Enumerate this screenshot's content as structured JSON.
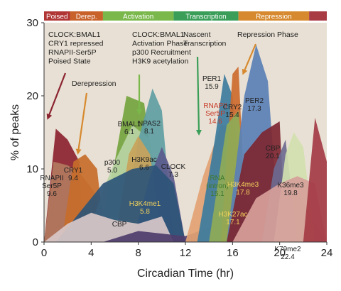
{
  "chart_data": {
    "type": "area",
    "title": "",
    "xlabel": "Circadian Time (hr)",
    "ylabel": "% of peaks",
    "xlim": [
      0,
      24
    ],
    "ylim": [
      0,
      30
    ],
    "xticks": [
      "0",
      "4",
      "8",
      "12",
      "16",
      "20",
      "24"
    ],
    "yticks": [
      "0",
      "10",
      "20",
      "30"
    ],
    "plot_background": "#e8e0d4",
    "grid": false,
    "phases": [
      {
        "name": "Poised",
        "start": 0,
        "end": 2.2,
        "color": "#b03535"
      },
      {
        "name": "Derep.",
        "start": 2.2,
        "end": 5,
        "color": "#c8612a"
      },
      {
        "name": "Activation",
        "start": 5,
        "end": 11,
        "color": "#7ab84b"
      },
      {
        "name": "Transcription",
        "start": 11,
        "end": 16.5,
        "color": "#3a9e58"
      },
      {
        "name": "Repression",
        "start": 16.5,
        "end": 22.5,
        "color": "#d6892e"
      },
      {
        "name": "",
        "start": 22.5,
        "end": 24,
        "color": "#a73a43"
      }
    ],
    "series": [
      {
        "name": "CLOCK:BMAL1",
        "color": "#8b2330",
        "label_color": "#222222",
        "x": [
          0,
          1,
          2,
          3,
          3.3,
          24
        ],
        "y": [
          0,
          15.5,
          14,
          11,
          0,
          0
        ]
      },
      {
        "name": "RNAPII Ser5P",
        "value": "9.6",
        "color": "#b2785e",
        "label_color": "#222222",
        "x": [
          0,
          0.8,
          2,
          3,
          4.2,
          6,
          24
        ],
        "y": [
          0,
          11,
          10.5,
          9.5,
          7,
          0,
          0
        ]
      },
      {
        "name": "CRY1",
        "value": "9.4",
        "color": "#c56d2a",
        "label_color": "#222222",
        "x": [
          1.5,
          2.5,
          3.5,
          4.5,
          5.2,
          24
        ],
        "y": [
          0,
          11,
          12,
          10,
          0,
          0
        ]
      },
      {
        "name": "BMAL1",
        "value": "6.1",
        "color": "#74a43e",
        "label_color": "#222222",
        "x": [
          4.5,
          6,
          7,
          8.5,
          10,
          24
        ],
        "y": [
          0,
          11,
          20,
          19,
          0,
          0
        ]
      },
      {
        "name": "p300",
        "value": "5.0",
        "color": "#b9d4a4",
        "label_color": "#222222",
        "x": [
          3.5,
          5,
          6,
          7.5,
          9,
          10,
          24
        ],
        "y": [
          0,
          7,
          11,
          16,
          14,
          0,
          0
        ]
      },
      {
        "name": "NPAS2",
        "value": "8.1",
        "color": "#5f9ea3",
        "label_color": "#222222",
        "x": [
          6.5,
          8,
          9.2,
          10,
          11,
          24
        ],
        "y": [
          0,
          14,
          21,
          18,
          0,
          0
        ]
      },
      {
        "name": "H3K9ac",
        "value": "6.6",
        "color": "#c9a25a",
        "label_color": "#222222",
        "x": [
          6,
          7.2,
          8,
          9,
          10,
          24
        ],
        "y": [
          0,
          12,
          14.5,
          12,
          0,
          0
        ]
      },
      {
        "name": "CLOCK",
        "value": "7.3",
        "color": "#5b5a8c",
        "label_color": "#222222",
        "x": [
          7.5,
          9,
          10,
          11,
          12,
          24
        ],
        "y": [
          0,
          9,
          13,
          9,
          0,
          0
        ]
      },
      {
        "name": "H3K4me1",
        "value": "5.8",
        "color": "#2e5578",
        "label_color": "#f2d25c",
        "x": [
          1,
          3,
          5,
          7.5,
          9.5,
          11,
          12,
          24
        ],
        "y": [
          0,
          4,
          8,
          10,
          10.5,
          8,
          0,
          0
        ]
      },
      {
        "name": "CBP",
        "color": "#d8c8c8",
        "label_color": "#222222",
        "x": [
          0,
          2,
          4,
          6,
          8,
          10,
          11,
          24
        ],
        "y": [
          0,
          2.5,
          4,
          3,
          2.5,
          3.5,
          0,
          0
        ]
      },
      {
        "name": "H3K27ac",
        "value": "17.1",
        "color": "#4f3d6d",
        "label_color": "#f2d25c",
        "x": [
          5,
          8,
          12,
          14,
          16,
          18,
          20,
          21,
          24
        ],
        "y": [
          0,
          1.5,
          0.8,
          2,
          4,
          6,
          7.5,
          8,
          0
        ]
      },
      {
        "name": "RNA (intron)",
        "value": "15.1",
        "color": "#e2a273",
        "label_color": "#3e7a2c",
        "x": [
          12,
          13.5,
          15,
          15.8,
          16.5,
          24
        ],
        "y": [
          0,
          9,
          16,
          16,
          0,
          0
        ]
      },
      {
        "name": "RNAPII Ser5P",
        "value": "14.6",
        "color": "#3d7c9d",
        "label_color": "#c73a28",
        "x": [
          13,
          14.5,
          15.3,
          16,
          17,
          24
        ],
        "y": [
          0,
          14,
          23,
          20,
          0,
          0
        ]
      },
      {
        "name": "PER1",
        "value": "15.9",
        "color": "#cc6a2e",
        "label_color": "#222222",
        "x": [
          15,
          16,
          16.5,
          17.2,
          24
        ],
        "y": [
          0,
          23,
          24,
          0,
          0
        ]
      },
      {
        "name": "CRY2",
        "value": "15.4",
        "color": "#8fab57",
        "label_color": "#222222",
        "x": [
          14,
          15.5,
          16.5,
          17.5,
          24
        ],
        "y": [
          0,
          16,
          18,
          0,
          0
        ]
      },
      {
        "name": "PER2",
        "value": "17.3",
        "color": "#5a80b6",
        "label_color": "#222222",
        "x": [
          15.5,
          17,
          18,
          19,
          20,
          24
        ],
        "y": [
          0,
          20,
          27,
          22,
          0,
          0
        ]
      },
      {
        "name": "H3K4me3",
        "value": "17.8",
        "color": "#7d2631",
        "label_color": "#f2d25c",
        "x": [
          15.5,
          17,
          18.5,
          20,
          20.5,
          24
        ],
        "y": [
          0,
          12,
          15,
          16.5,
          0,
          0
        ]
      },
      {
        "name": "CBP",
        "value": "20.1",
        "color": "#6c6a90",
        "label_color": "#222222",
        "x": [
          18.5,
          19.5,
          20.5,
          21.5,
          24
        ],
        "y": [
          0,
          10,
          14,
          0,
          0
        ]
      },
      {
        "name": "K36me3",
        "value": "19.8",
        "color": "#d1dfae",
        "label_color": "#222222",
        "x": [
          19.5,
          20.5,
          21.2,
          22,
          23,
          24
        ],
        "y": [
          0,
          12,
          15,
          13,
          0,
          0
        ]
      },
      {
        "name": "K79me2",
        "value": "22.4",
        "color": "#d6a09a",
        "label_color": "#222222",
        "x": [
          16,
          18,
          20,
          21.5,
          23,
          24
        ],
        "y": [
          0,
          6,
          8,
          9,
          8,
          0
        ]
      },
      {
        "name": "",
        "color": "#a43b45",
        "label_color": "#222222",
        "x": [
          22,
          23,
          24,
          24
        ],
        "y": [
          0,
          17,
          11,
          0
        ]
      }
    ],
    "annotations": [
      {
        "lines": [
          "CLOCK:BMAL1",
          "CRY1 repressed",
          "RNAPII-Ser5P",
          "Poised State"
        ],
        "arrow_color": "#8b2330"
      },
      {
        "lines": [
          "Derepression"
        ],
        "arrow_color": "#d6892e"
      },
      {
        "lines": [
          "CLOCK:BMAL1",
          "Activation Phase",
          "p300 Recruitment",
          "H3K9 acetylation"
        ],
        "arrow_color": "#7ab84b"
      },
      {
        "lines": [
          "Nascent",
          "Transcription"
        ],
        "arrow_color": "#3a9e58"
      },
      {
        "lines": [
          "Repression Phase"
        ],
        "arrow_color": "#d6892e"
      }
    ]
  }
}
